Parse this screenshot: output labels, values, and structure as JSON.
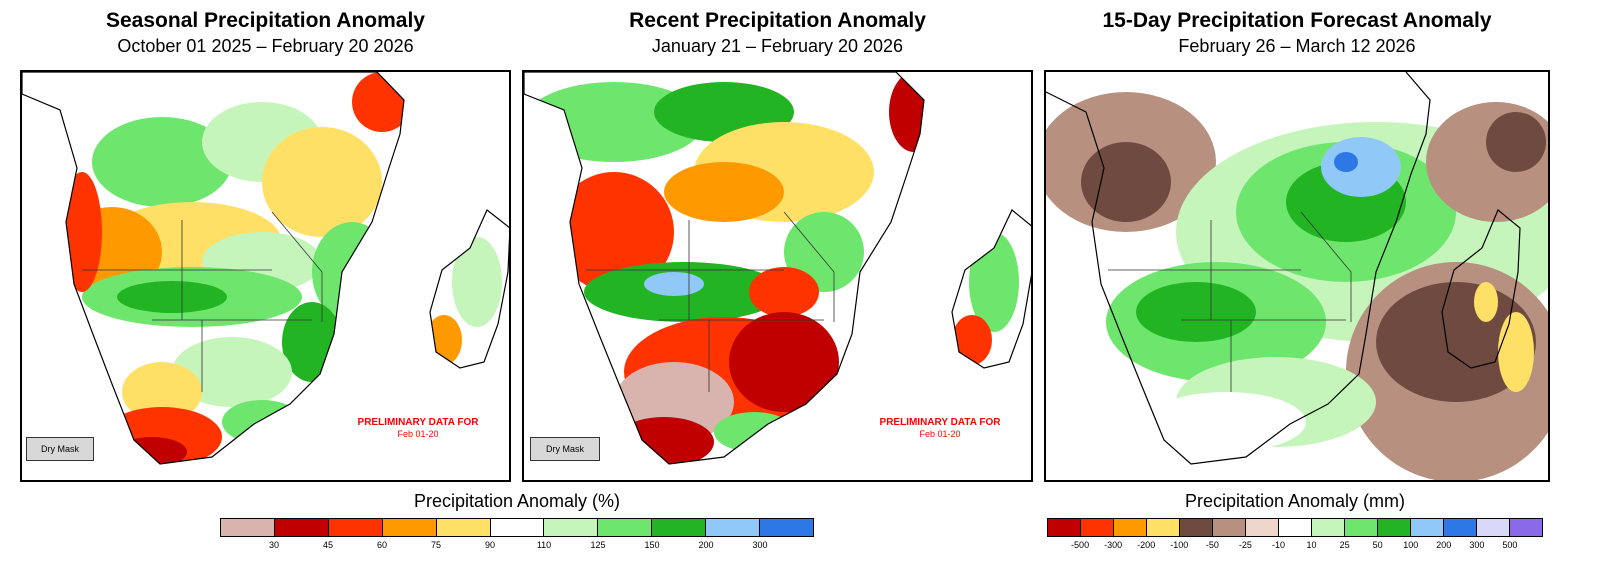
{
  "panels": [
    {
      "title": "Seasonal Precipitation Anomaly",
      "subtitle": "October 01 2025 – February 20 2026",
      "dry_mask": "Dry Mask",
      "prelim_line1": "PRELIMINARY DATA FOR",
      "prelim_line2": "Feb 01-20"
    },
    {
      "title": "Recent Precipitation Anomaly",
      "subtitle": "January 21 – February 20 2026",
      "dry_mask": "Dry Mask",
      "prelim_line1": "PRELIMINARY DATA FOR",
      "prelim_line2": "Feb 01-20"
    },
    {
      "title": "15-Day Precipitation Forecast Anomaly",
      "subtitle": "February 26 – March 12 2026"
    }
  ],
  "legend_percent": {
    "title": "Precipitation Anomaly (%)",
    "colors": [
      "#d9b3ae",
      "#c00000",
      "#ff3300",
      "#ff9900",
      "#ffe066",
      "#ffffff",
      "#c6f5bb",
      "#6ee66e",
      "#22b422",
      "#90c8f8",
      "#2e78e6"
    ],
    "ticks": [
      "30",
      "45",
      "60",
      "75",
      "90",
      "110",
      "125",
      "150",
      "200",
      "300"
    ]
  },
  "legend_mm": {
    "title": "Precipitation Anomaly (mm)",
    "colors": [
      "#c00000",
      "#ff3300",
      "#ff9900",
      "#ffe066",
      "#6e4a40",
      "#b89080",
      "#efd6cc",
      "#ffffff",
      "#c6f5bb",
      "#6ee66e",
      "#22b422",
      "#90c8f8",
      "#2e78e6",
      "#d8d8f8",
      "#8a6ae6"
    ],
    "ticks": [
      "-500",
      "-300",
      "-200",
      "-100",
      "-50",
      "-25",
      "-10",
      "10",
      "25",
      "50",
      "100",
      "200",
      "300",
      "500"
    ]
  }
}
